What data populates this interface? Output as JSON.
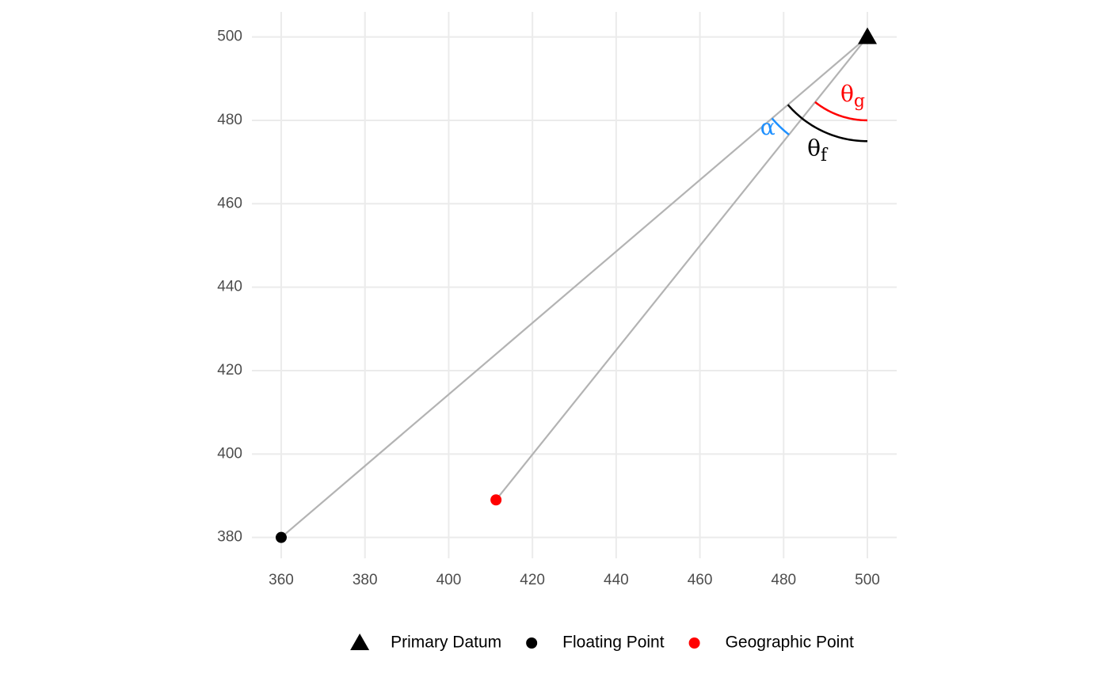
{
  "chart_data": {
    "type": "scatter",
    "series": [
      {
        "name": "Primary Datum",
        "color": "#000000",
        "shape": "triangle",
        "x": [
          500
        ],
        "y": [
          500
        ]
      },
      {
        "name": "Floating Point",
        "color": "#000000",
        "shape": "circle",
        "x": [
          360
        ],
        "y": [
          380
        ]
      },
      {
        "name": "Geographic Point",
        "color": "#ff0000",
        "shape": "circle",
        "x": [
          411.3
        ],
        "y": [
          389
        ]
      }
    ],
    "segment_color": "#b3b3b3",
    "arcs": [
      {
        "label": "θ",
        "subscript": "g",
        "color": "#ff0000",
        "radius": 20,
        "from": "vertical",
        "to": 2,
        "label_x": 496.5,
        "label_y": 486
      },
      {
        "label": "θ",
        "subscript": "f",
        "color": "#000000",
        "radius": 25,
        "from": "vertical",
        "to": 1,
        "label_x": 488,
        "label_y": 473
      },
      {
        "label": "α",
        "color": "#1e90ff",
        "radius": 30,
        "from": 1,
        "to": 2,
        "label_x": 476.2,
        "label_y": 478
      }
    ],
    "xlim": [
      353,
      507
    ],
    "ylim": [
      375,
      506
    ],
    "xticks": [
      360,
      380,
      400,
      420,
      440,
      460,
      480,
      500
    ],
    "yticks": [
      380,
      400,
      420,
      440,
      460,
      480,
      500
    ],
    "grid": true,
    "legend": "bottom"
  }
}
